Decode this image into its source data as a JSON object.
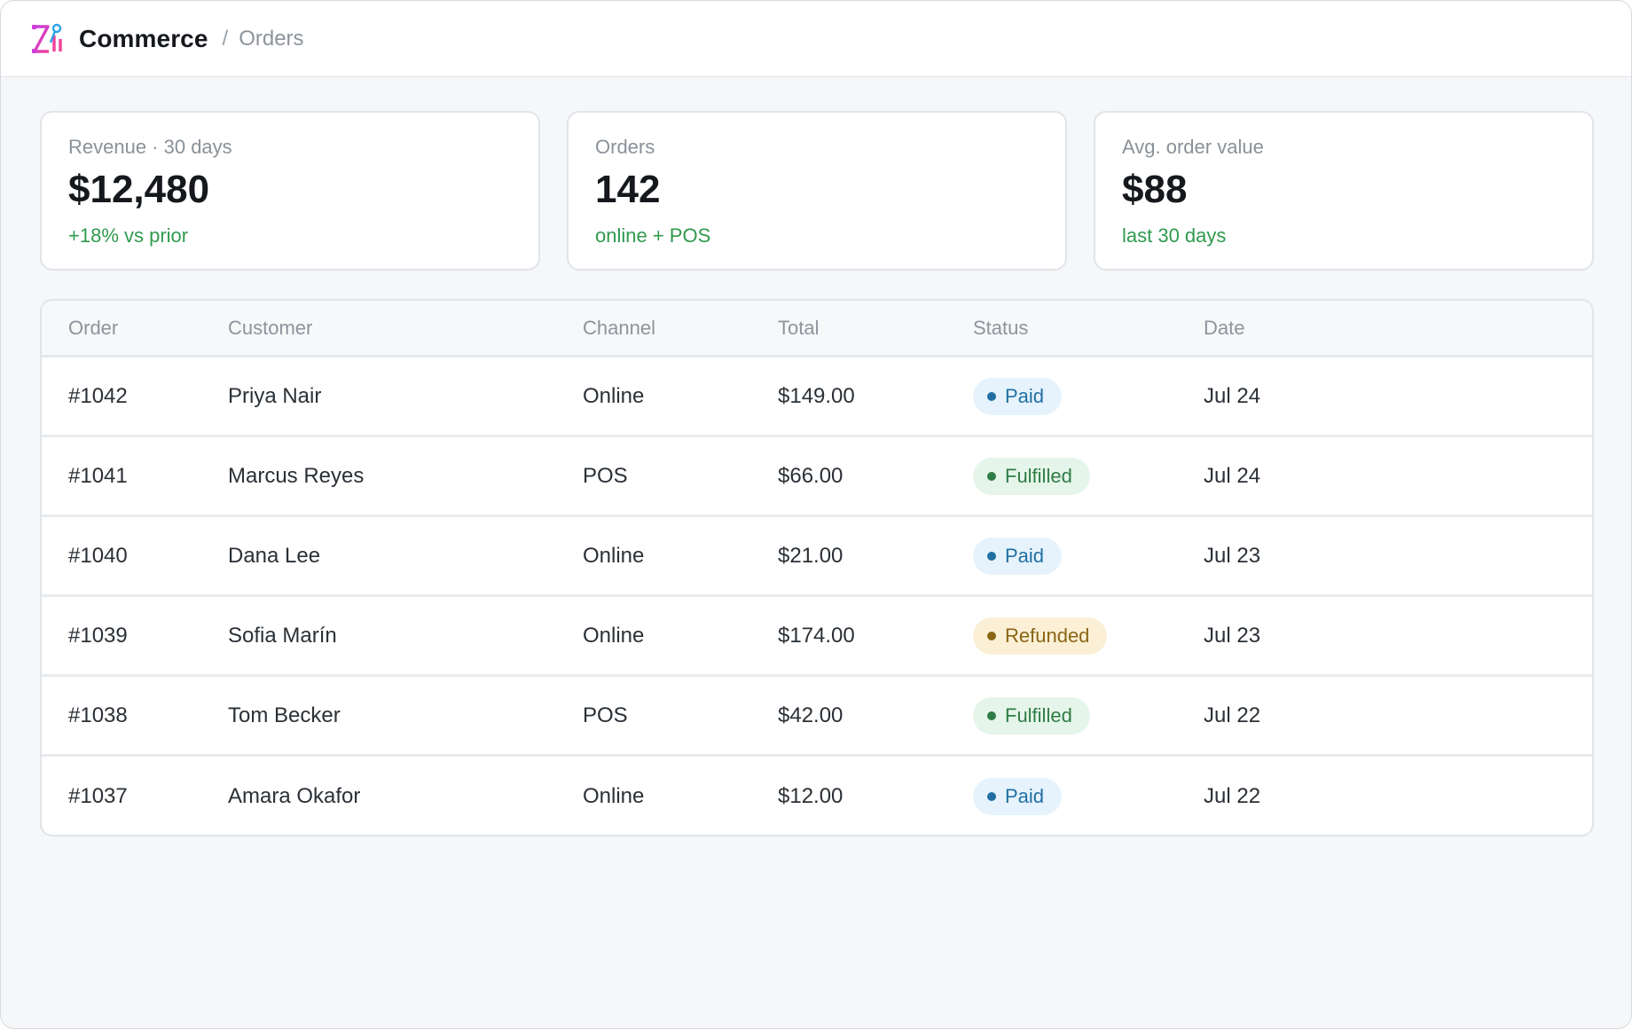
{
  "header": {
    "app_name": "Commerce",
    "separator": "/",
    "breadcrumb": "Orders",
    "logo_icon": "commerce-logo-icon"
  },
  "stats": [
    {
      "label": "Revenue · 30 days",
      "value": "$12,480",
      "sub": "+18% vs prior"
    },
    {
      "label": "Orders",
      "value": "142",
      "sub": "online + POS"
    },
    {
      "label": "Avg. order value",
      "value": "$88",
      "sub": "last 30 days"
    }
  ],
  "table": {
    "columns": {
      "order": "Order",
      "customer": "Customer",
      "channel": "Channel",
      "total": "Total",
      "status": "Status",
      "date": "Date"
    },
    "rows": [
      {
        "order": "#1042",
        "customer": "Priya Nair",
        "channel": "Online",
        "total": "$149.00",
        "status": "Paid",
        "date": "Jul 24"
      },
      {
        "order": "#1041",
        "customer": "Marcus Reyes",
        "channel": "POS",
        "total": "$66.00",
        "status": "Fulfilled",
        "date": "Jul 24"
      },
      {
        "order": "#1040",
        "customer": "Dana Lee",
        "channel": "Online",
        "total": "$21.00",
        "status": "Paid",
        "date": "Jul 23"
      },
      {
        "order": "#1039",
        "customer": "Sofia Marín",
        "channel": "Online",
        "total": "$174.00",
        "status": "Refunded",
        "date": "Jul 23"
      },
      {
        "order": "#1038",
        "customer": "Tom Becker",
        "channel": "POS",
        "total": "$42.00",
        "status": "Fulfilled",
        "date": "Jul 22"
      },
      {
        "order": "#1037",
        "customer": "Amara Okafor",
        "channel": "Online",
        "total": "$12.00",
        "status": "Paid",
        "date": "Jul 22"
      }
    ]
  },
  "colors": {
    "positive": "#2f9a4e",
    "status": {
      "Paid": {
        "bg": "#e6f3fc",
        "fg": "#1f6fa3",
        "dot": "#1f6fa3"
      },
      "Fulfilled": {
        "bg": "#e6f5ea",
        "fg": "#2e7d46",
        "dot": "#2e7d46"
      },
      "Refunded": {
        "bg": "#fbf0d6",
        "fg": "#8a6515",
        "dot": "#8a6515"
      }
    }
  }
}
